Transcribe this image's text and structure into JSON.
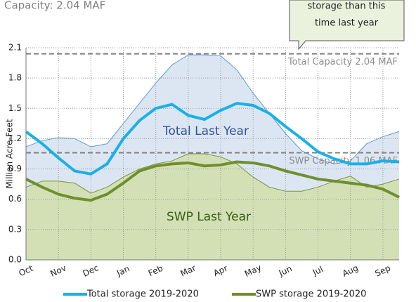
{
  "chart_data": {
    "type": "line",
    "subtitle": "Capacity: 2.04 MAF",
    "callout": [
      "storage than this",
      "time last year"
    ],
    "ylabel": "Million Acre-Feet",
    "categories": [
      "Oct",
      null,
      "Nov",
      null,
      "Dec",
      null,
      "Jan",
      null,
      "Feb",
      null,
      "Mar",
      null,
      "Apr",
      null,
      "May",
      null,
      "Jun",
      null,
      "Jul",
      null,
      "Aug",
      null,
      "Sep",
      null
    ],
    "ylim": [
      0,
      2.1
    ],
    "yticks": [
      {
        "value": 0,
        "label": "0.0"
      },
      0.3,
      0.6,
      0.9,
      1.2,
      1.5,
      1.8,
      2.1
    ],
    "grid": true,
    "areas": [
      {
        "label": "Total Last Year",
        "color": "#dce6f2",
        "line_color": "#5b9bd5",
        "values": [
          1.12,
          1.18,
          1.21,
          1.2,
          1.12,
          1.15,
          1.35,
          1.55,
          1.75,
          1.93,
          2.03,
          2.03,
          2.02,
          1.88,
          1.65,
          1.45,
          1.25,
          1.08,
          1.0,
          0.95,
          0.98,
          1.15,
          1.22,
          1.27
        ]
      },
      {
        "label": "SWP Last Year",
        "color": "#d3e0b5",
        "line_color": "#77933c",
        "values": [
          0.72,
          0.78,
          0.78,
          0.76,
          0.66,
          0.72,
          0.82,
          0.9,
          0.95,
          0.98,
          1.05,
          1.05,
          1.02,
          0.95,
          0.82,
          0.72,
          0.68,
          0.68,
          0.72,
          0.78,
          0.83,
          0.72,
          0.75,
          0.8
        ]
      }
    ],
    "reference_lines": [
      {
        "value": 2.04,
        "label": "Total Capacity 2.04 MAF"
      },
      {
        "value": 1.06,
        "label": "SWP Capacity 1.06 MAF"
      }
    ],
    "series": [
      {
        "name": "Total storage 2019-2020",
        "color": "#1ab0e8",
        "values": [
          1.27,
          1.15,
          1.01,
          0.88,
          0.85,
          0.95,
          1.2,
          1.38,
          1.5,
          1.54,
          1.43,
          1.39,
          1.48,
          1.55,
          1.53,
          1.45,
          1.32,
          1.2,
          1.07,
          1.0,
          0.95,
          0.95,
          0.98,
          0.97
        ]
      },
      {
        "name": "SWP storage 2019-2020",
        "color": "#6f8f2e",
        "values": [
          0.8,
          0.72,
          0.65,
          0.61,
          0.59,
          0.65,
          0.76,
          0.88,
          0.93,
          0.95,
          0.96,
          0.93,
          0.94,
          0.97,
          0.96,
          0.93,
          0.88,
          0.84,
          0.8,
          0.78,
          0.76,
          0.74,
          0.7,
          0.62
        ]
      }
    ]
  }
}
